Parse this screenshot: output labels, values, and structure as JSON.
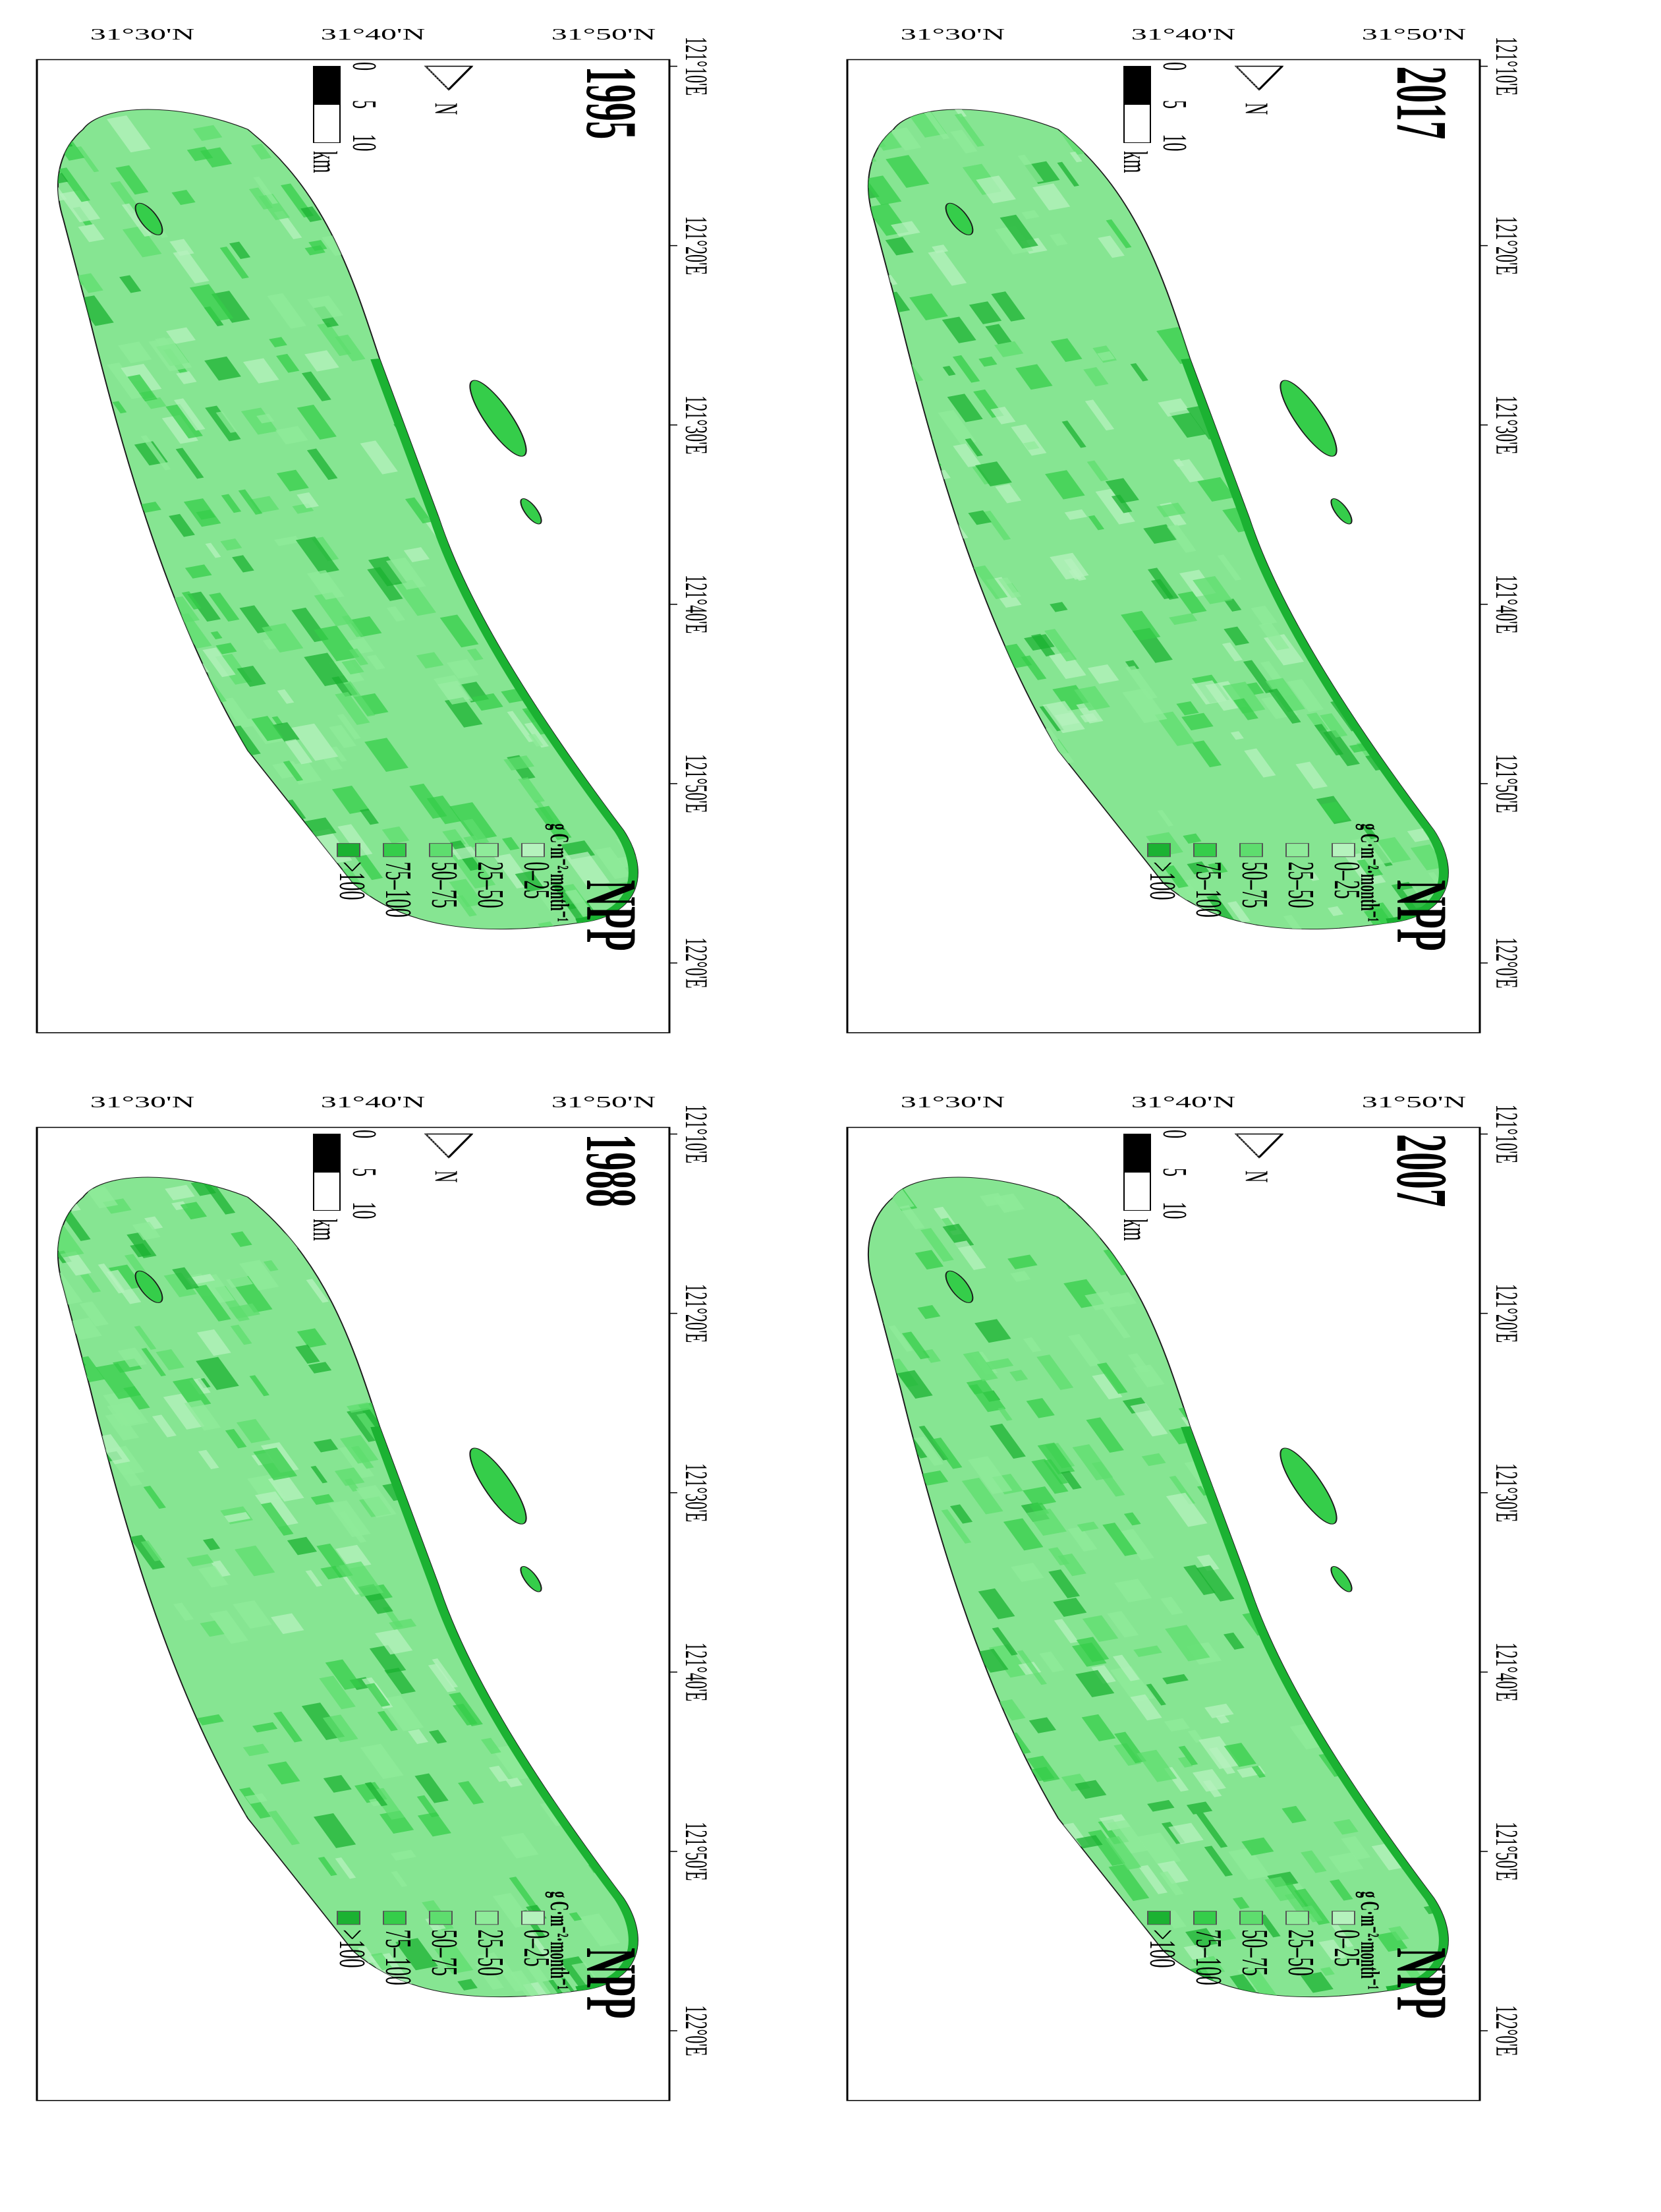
{
  "colors": {
    "class_0_25": "#b5f2bd",
    "class_25_50": "#8feb9a",
    "class_50_75": "#5edd6e",
    "class_75_100": "#35cd4a",
    "class_gt_100": "#1bb232",
    "land_base": "#86e592",
    "frame": "#000000"
  },
  "legend": {
    "title": "NPP",
    "units": "g C·m⁻²·month⁻¹",
    "classes": [
      "0–25",
      "25–50",
      "50–75",
      "75–100",
      ">100"
    ]
  },
  "scalebar": {
    "ticks": [
      "0",
      "5",
      "10"
    ],
    "unit": "km"
  },
  "north_arrow": {
    "label": "N"
  },
  "axes": {
    "longitude_ticks": [
      "121°10'E",
      "121°20'E",
      "121°30'E",
      "121°40'E",
      "121°50'E",
      "122°0'E"
    ],
    "latitude_ticks": [
      "31°50'N",
      "31°40'N",
      "31°30'N"
    ]
  },
  "panels": [
    {
      "year": "1988"
    },
    {
      "year": "1995"
    },
    {
      "year": "2007"
    },
    {
      "year": "2017"
    }
  ]
}
